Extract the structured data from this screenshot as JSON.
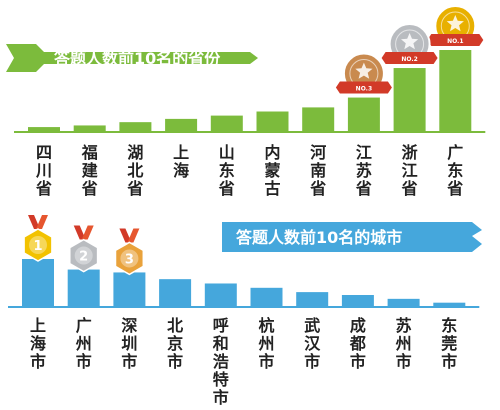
{
  "chart_data": [
    {
      "type": "bar",
      "title": "答题人数前10名的省份",
      "categories": [
        "四川省",
        "福建省",
        "湖北省",
        "上海",
        "山东省",
        "内蒙古",
        "河南省",
        "江苏省",
        "浙江省",
        "广东省"
      ],
      "values": [
        6,
        8,
        12,
        16,
        20,
        25,
        30,
        42,
        78,
        100
      ],
      "ylim": [
        0,
        100
      ],
      "grid": false,
      "medals": [
        {
          "category": "广东省",
          "label": "NO.1",
          "color": "#e8b000"
        },
        {
          "category": "浙江省",
          "label": "NO.2",
          "color": "#b9bcc0"
        },
        {
          "category": "江苏省",
          "label": "NO.3",
          "color": "#c98a4f"
        }
      ],
      "bar_color": "#7cbb3c"
    },
    {
      "type": "bar",
      "title": "答题人数前10名的城市",
      "categories": [
        "上海市",
        "广州市",
        "深圳市",
        "北京市",
        "呼和浩特市",
        "杭州市",
        "武汉市",
        "成都市",
        "苏州市",
        "东莞市"
      ],
      "values": [
        100,
        78,
        72,
        58,
        49,
        40,
        31,
        25,
        17,
        9
      ],
      "ylim": [
        0,
        100
      ],
      "grid": false,
      "medals": [
        {
          "category": "上海市",
          "label": "1",
          "color": "#f2c200"
        },
        {
          "category": "广州市",
          "label": "2",
          "color": "#b9bcc0"
        },
        {
          "category": "深圳市",
          "label": "3",
          "color": "#e9a23b"
        }
      ],
      "bar_color": "#45a7dc"
    }
  ]
}
